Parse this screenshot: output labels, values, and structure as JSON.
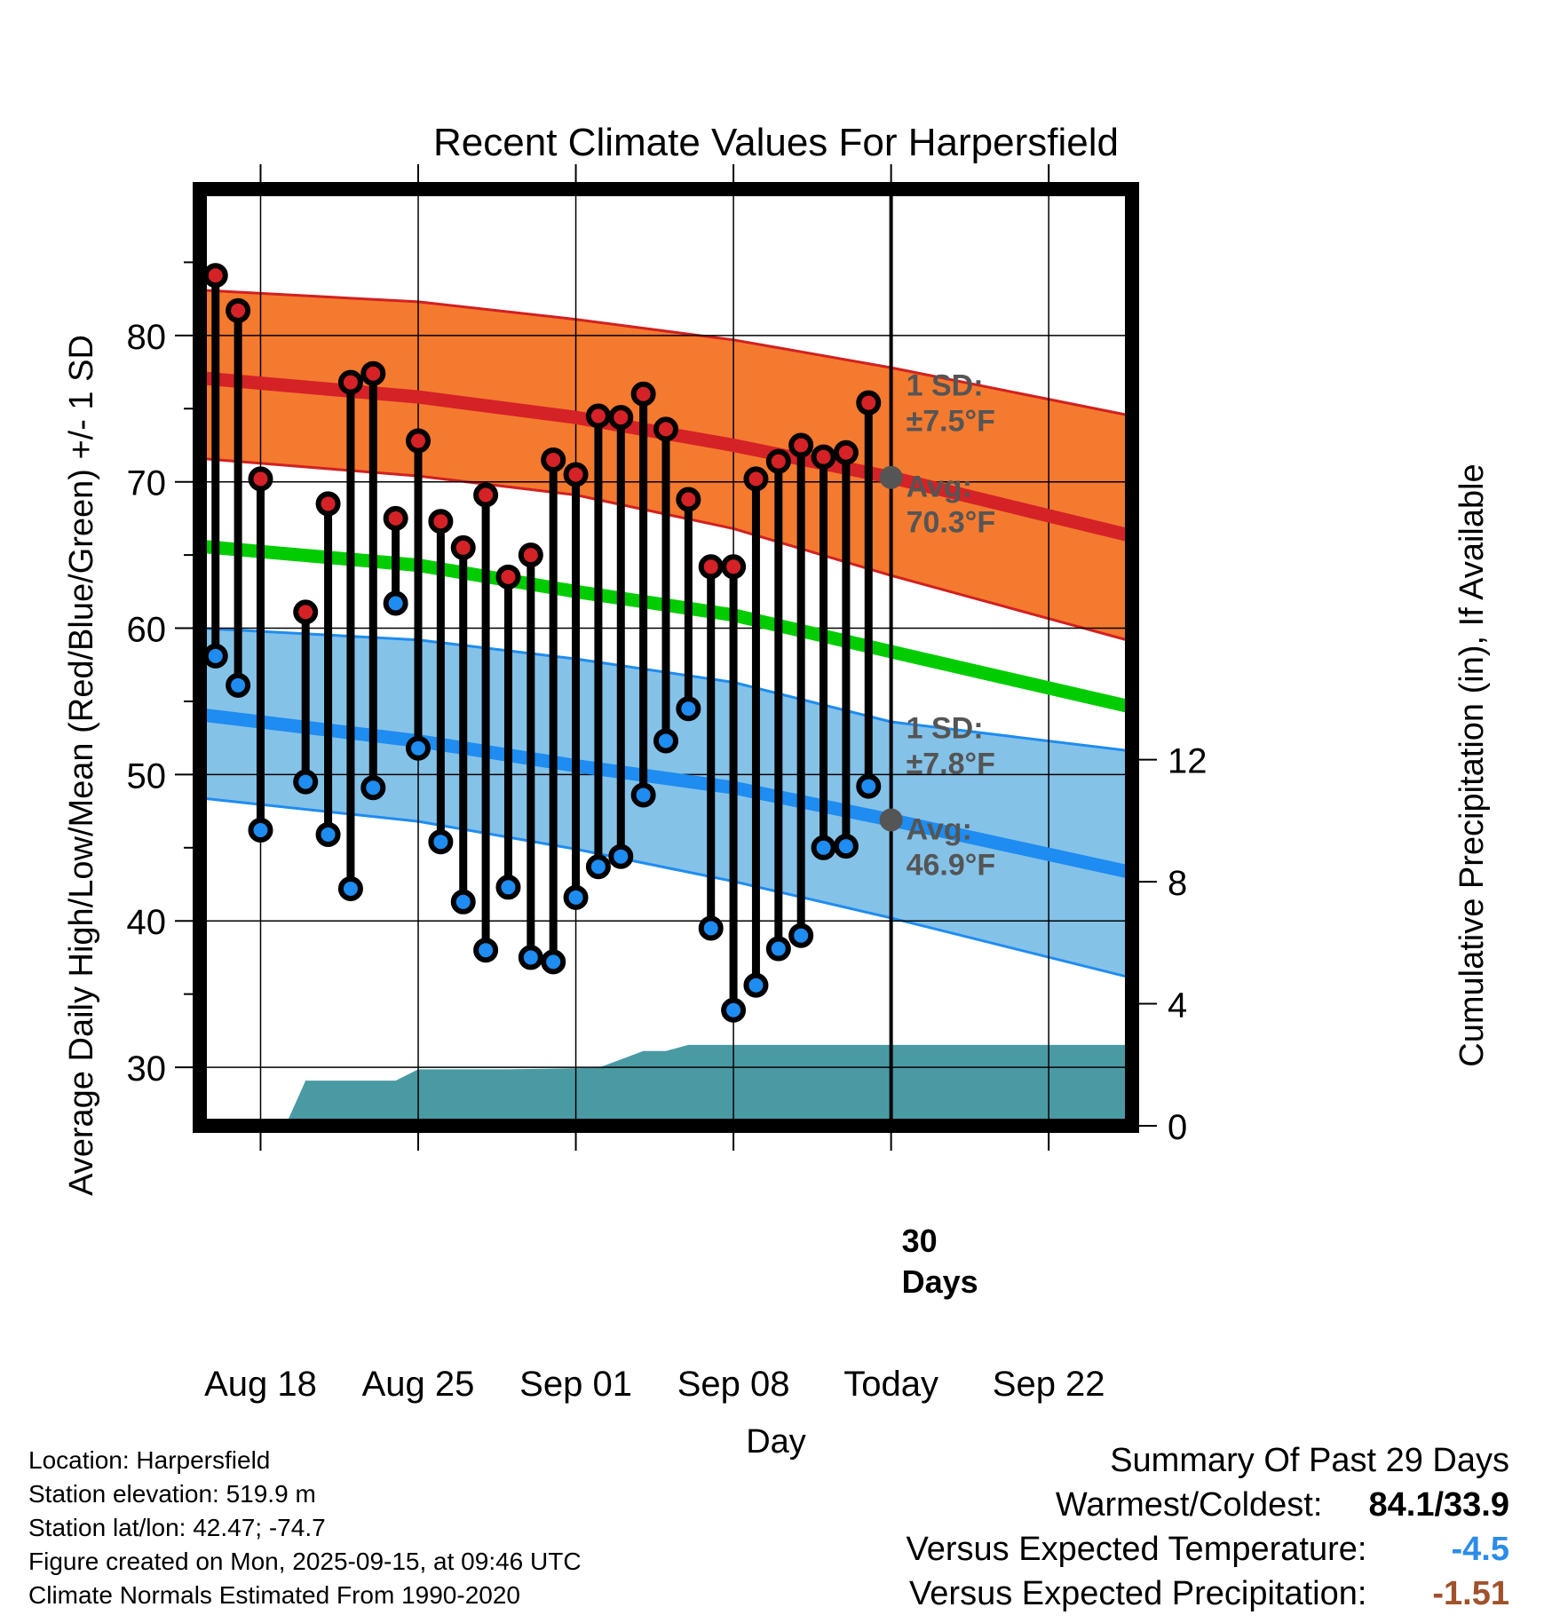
{
  "colors": {
    "high_band": "#F47A2F",
    "high_band_edge": "#D22020",
    "high_mean": "#D42227",
    "low_band": "#85C2E8",
    "low_band_edge": "#1E8CF0",
    "low_mean": "#1E8CF0",
    "mean_line": "#00CC00",
    "precip": "#4A9AA4",
    "high_dot": "#D42227",
    "low_dot": "#1E8CF0",
    "avg_marker": "#555555",
    "temp_anomaly": "#2B8CE8",
    "precip_anomaly": "#A0522D"
  },
  "chart_data": {
    "type": "climate-dumbbell",
    "title": "Recent Climate Values For Harpersfield",
    "xlabel": "Day",
    "ylabel": "Average Daily High/Low/Mean (Red/Blue/Green) +/- 1 SD",
    "y2label": "Cumulative Precipitation (in), If Available",
    "ylim": [
      26,
      90
    ],
    "y2lim": [
      0,
      30.7
    ],
    "xlim": [
      15.3,
      56.7
    ],
    "x_units": "day number, Aug 1 = 1",
    "yticks": [
      30,
      40,
      50,
      60,
      70,
      80
    ],
    "y2ticks": [
      0,
      4,
      8,
      12
    ],
    "x_ticks": [
      {
        "x": 18,
        "label": "Aug 18"
      },
      {
        "x": 25,
        "label": "Aug 25"
      },
      {
        "x": 32,
        "label": "Sep 01"
      },
      {
        "x": 39,
        "label": "Sep 08"
      },
      {
        "x": 46,
        "label": "Today"
      },
      {
        "x": 53,
        "label": "Sep 22"
      }
    ],
    "today_x": 46,
    "today_label": "30 Days",
    "normals": {
      "x": [
        15.3,
        25,
        32,
        39,
        46,
        56.7
      ],
      "high_mean": [
        77.1,
        75.8,
        74.4,
        72.5,
        70.3,
        66.3
      ],
      "high_upper": [
        83.1,
        82.3,
        81.1,
        79.7,
        77.8,
        74.5
      ],
      "high_lower": [
        71.6,
        70.4,
        69.1,
        66.8,
        63.6,
        59.1
      ],
      "low_mean": [
        54.1,
        52.3,
        50.6,
        49.1,
        46.9,
        43.3
      ],
      "low_upper": [
        60.0,
        59.2,
        57.9,
        56.3,
        53.6,
        51.6
      ],
      "low_lower": [
        48.4,
        46.8,
        44.9,
        42.7,
        40.2,
        36.1
      ],
      "mean": [
        65.6,
        64.3,
        62.5,
        60.9,
        58.4,
        54.6
      ]
    },
    "avg_annotations": {
      "high": {
        "sd": "1 SD:",
        "sd_val": "±7.5°F",
        "avg": "Avg:",
        "avg_val": "70.3°F",
        "value": 70.3
      },
      "low": {
        "sd": "1 SD:",
        "sd_val": "±7.8°F",
        "avg": "Avg:",
        "avg_val": "46.9°F",
        "value": 46.9
      }
    },
    "observations": [
      {
        "x": 16,
        "high": 84.1,
        "low": 58.1
      },
      {
        "x": 17,
        "high": 81.7,
        "low": 56.1
      },
      {
        "x": 18,
        "high": 70.2,
        "low": 46.2
      },
      {
        "x": 20,
        "high": 61.1,
        "low": 49.5
      },
      {
        "x": 21,
        "high": 68.5,
        "low": 45.9
      },
      {
        "x": 22,
        "high": 76.8,
        "low": 42.2
      },
      {
        "x": 23,
        "high": 77.4,
        "low": 49.1
      },
      {
        "x": 24,
        "high": 67.5,
        "low": 61.7
      },
      {
        "x": 25,
        "high": 72.8,
        "low": 51.8
      },
      {
        "x": 26,
        "high": 67.3,
        "low": 45.4
      },
      {
        "x": 27,
        "high": 65.5,
        "low": 41.3
      },
      {
        "x": 28,
        "high": 69.1,
        "low": 38.0
      },
      {
        "x": 29,
        "high": 63.5,
        "low": 42.3
      },
      {
        "x": 30,
        "high": 65.0,
        "low": 37.5
      },
      {
        "x": 31,
        "high": 71.5,
        "low": 37.2
      },
      {
        "x": 32,
        "high": 70.5,
        "low": 41.6
      },
      {
        "x": 33,
        "high": 74.5,
        "low": 43.7
      },
      {
        "x": 34,
        "high": 74.4,
        "low": 44.4
      },
      {
        "x": 35,
        "high": 76.0,
        "low": 48.6
      },
      {
        "x": 36,
        "high": 73.6,
        "low": 52.3
      },
      {
        "x": 37,
        "high": 68.8,
        "low": 54.5
      },
      {
        "x": 38,
        "high": 64.2,
        "low": 39.5
      },
      {
        "x": 39,
        "high": 64.2,
        "low": 33.9
      },
      {
        "x": 40,
        "high": 70.2,
        "low": 35.6
      },
      {
        "x": 41,
        "high": 71.4,
        "low": 38.1
      },
      {
        "x": 42,
        "high": 72.5,
        "low": 39.0
      },
      {
        "x": 43,
        "high": 71.7,
        "low": 45.0
      },
      {
        "x": 44,
        "high": 72.0,
        "low": 45.1
      },
      {
        "x": 45,
        "high": 75.4,
        "low": 49.2
      }
    ],
    "precip": {
      "x": [
        15.3,
        19.1,
        20.0,
        24.0,
        25.0,
        29.0,
        33.0,
        35.0,
        36.0,
        37.0,
        56.7
      ],
      "y": [
        0,
        0,
        1.48,
        1.48,
        1.85,
        1.85,
        1.9,
        2.45,
        2.45,
        2.65,
        2.65
      ]
    }
  },
  "footer": {
    "location": "Location: Harpersfield",
    "elevation": "Station elevation: 519.9 m",
    "latlon": "Station lat/lon: 42.47; -74.7",
    "created": "Figure created on Mon, 2025-09-15, at 09:46 UTC",
    "normals": "Climate Normals Estimated From 1990-2020"
  },
  "summary": {
    "title": "Summary Of Past 29 Days",
    "warmest_label": "Warmest/Coldest:",
    "warmest_value": "84.1/33.9",
    "temp_label": "Versus Expected Temperature:",
    "temp_value": "-4.5",
    "precip_label": "Versus Expected Precipitation:",
    "precip_value": "-1.51"
  }
}
